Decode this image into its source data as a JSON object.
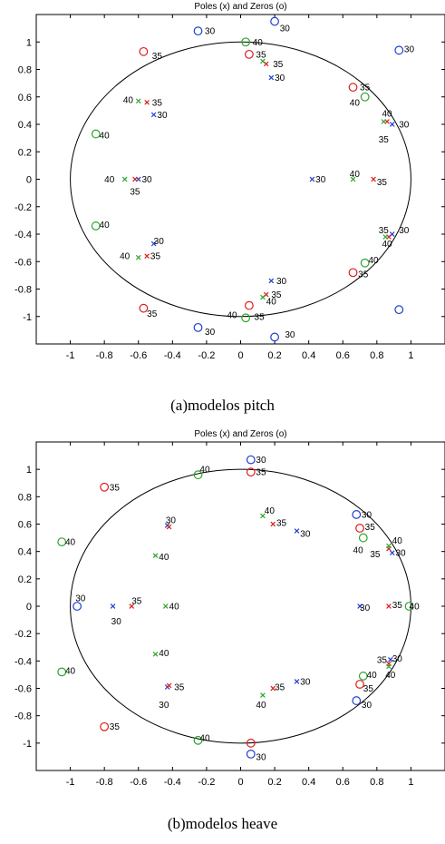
{
  "captions": {
    "pitch": "(a)modelos pitch",
    "heave": "(b)modelos heave"
  },
  "colors": {
    "30": "#1f3fd1",
    "35": "#e01b1b",
    "40": "#2aa52a",
    "axes": "#000000"
  },
  "chart_data": [
    {
      "type": "scatter",
      "title": "Poles (x) and Zeros (o)",
      "xlabel": "",
      "ylabel": "",
      "xlim": [
        -1.2,
        1.2
      ],
      "ylim": [
        -1.2,
        1.2
      ],
      "xticks": [
        -1,
        -0.8,
        -0.6,
        -0.4,
        -0.2,
        0,
        0.2,
        0.4,
        0.6,
        0.8,
        1
      ],
      "xtick_labels": [
        "-1",
        "-0.8",
        "-0.6",
        "-0.4",
        "-0.2",
        "0",
        "0.2",
        "0.4",
        "0.6",
        "0.8",
        "1"
      ],
      "yticks": [
        -1,
        -0.8,
        -0.6,
        -0.4,
        -0.2,
        0,
        0.2,
        0.4,
        0.6,
        0.8,
        1
      ],
      "ytick_labels": [
        "-1",
        "-0.8",
        "-0.6",
        "-0.4",
        "-0.2",
        "0",
        "0.2",
        "0.4",
        "0.6",
        "0.8",
        "1"
      ],
      "unit_circle": true,
      "grid": false,
      "legend": "none",
      "series": [
        {
          "name": "30",
          "color": "#1f3fd1",
          "zeros": [
            [
              -0.25,
              1.08
            ],
            [
              0.2,
              1.15
            ],
            [
              0.93,
              0.94
            ],
            [
              -0.25,
              -1.08
            ],
            [
              0.2,
              -1.15
            ],
            [
              0.93,
              -0.95
            ]
          ],
          "poles": [
            [
              0.18,
              0.74
            ],
            [
              -0.51,
              0.47
            ],
            [
              0.89,
              0.4
            ],
            [
              -0.6,
              0.0
            ],
            [
              0.42,
              0.0
            ],
            [
              0.89,
              -0.4
            ],
            [
              -0.51,
              -0.47
            ],
            [
              0.18,
              -0.74
            ]
          ]
        },
        {
          "name": "35",
          "color": "#e01b1b",
          "zeros": [
            [
              -0.57,
              0.93
            ],
            [
              0.05,
              0.91
            ],
            [
              0.66,
              0.67
            ],
            [
              0.66,
              -0.68
            ],
            [
              0.05,
              -0.92
            ],
            [
              -0.57,
              -0.94
            ]
          ],
          "poles": [
            [
              0.15,
              0.84
            ],
            [
              -0.55,
              0.56
            ],
            [
              0.86,
              0.42
            ],
            [
              -0.62,
              0.0
            ],
            [
              0.78,
              0.0
            ],
            [
              0.87,
              -0.42
            ],
            [
              -0.55,
              -0.56
            ],
            [
              0.15,
              -0.84
            ]
          ]
        },
        {
          "name": "40",
          "color": "#2aa52a",
          "zeros": [
            [
              0.03,
              1.0
            ],
            [
              0.73,
              0.6
            ],
            [
              -0.85,
              0.33
            ],
            [
              -0.85,
              -0.34
            ],
            [
              0.73,
              -0.61
            ],
            [
              0.03,
              -1.01
            ]
          ],
          "poles": [
            [
              0.13,
              0.86
            ],
            [
              -0.6,
              0.57
            ],
            [
              0.84,
              0.42
            ],
            [
              -0.68,
              0.0
            ],
            [
              0.66,
              0.0
            ],
            [
              0.85,
              -0.42
            ],
            [
              -0.6,
              -0.57
            ],
            [
              0.13,
              -0.86
            ]
          ]
        }
      ],
      "annotations": [
        {
          "text": "30",
          "x": -0.21,
          "y": 1.08
        },
        {
          "text": "30",
          "x": 0.23,
          "y": 1.1
        },
        {
          "text": "30",
          "x": 0.96,
          "y": 0.95
        },
        {
          "text": "40",
          "x": 0.07,
          "y": 1.0
        },
        {
          "text": "35",
          "x": -0.52,
          "y": 0.9
        },
        {
          "text": "35",
          "x": 0.09,
          "y": 0.91
        },
        {
          "text": "35",
          "x": 0.19,
          "y": 0.84
        },
        {
          "text": "30",
          "x": 0.2,
          "y": 0.74
        },
        {
          "text": "35",
          "x": 0.7,
          "y": 0.67
        },
        {
          "text": "40",
          "x": 0.64,
          "y": 0.56
        },
        {
          "text": "40",
          "x": -0.69,
          "y": 0.58
        },
        {
          "text": "35",
          "x": -0.52,
          "y": 0.56
        },
        {
          "text": "30",
          "x": -0.49,
          "y": 0.47
        },
        {
          "text": "40",
          "x": 0.83,
          "y": 0.48
        },
        {
          "text": "30",
          "x": 0.93,
          "y": 0.4
        },
        {
          "text": "35",
          "x": 0.81,
          "y": 0.29
        },
        {
          "text": "40",
          "x": -0.83,
          "y": 0.32
        },
        {
          "text": "40",
          "x": -0.8,
          "y": 0.0
        },
        {
          "text": "30",
          "x": -0.58,
          "y": 0.0
        },
        {
          "text": "35",
          "x": -0.65,
          "y": -0.09
        },
        {
          "text": "30",
          "x": 0.44,
          "y": 0.0
        },
        {
          "text": "40",
          "x": 0.64,
          "y": 0.04
        },
        {
          "text": "35",
          "x": 0.8,
          "y": -0.02
        },
        {
          "text": "40",
          "x": -0.83,
          "y": -0.33
        },
        {
          "text": "30",
          "x": -0.51,
          "y": -0.45
        },
        {
          "text": "40",
          "x": -0.71,
          "y": -0.56
        },
        {
          "text": "35",
          "x": -0.53,
          "y": -0.56
        },
        {
          "text": "35",
          "x": 0.81,
          "y": -0.37
        },
        {
          "text": "30",
          "x": 0.93,
          "y": -0.37
        },
        {
          "text": "40",
          "x": 0.83,
          "y": -0.47
        },
        {
          "text": "40",
          "x": 0.75,
          "y": -0.59
        },
        {
          "text": "35",
          "x": 0.69,
          "y": -0.69
        },
        {
          "text": "30",
          "x": 0.21,
          "y": -0.74
        },
        {
          "text": "35",
          "x": 0.18,
          "y": -0.84
        },
        {
          "text": "40",
          "x": 0.15,
          "y": -0.89
        },
        {
          "text": "35",
          "x": -0.55,
          "y": -0.98
        },
        {
          "text": "40",
          "x": -0.08,
          "y": -0.99
        },
        {
          "text": "35",
          "x": 0.08,
          "y": -1.0
        },
        {
          "text": "30",
          "x": -0.21,
          "y": -1.11
        },
        {
          "text": "30",
          "x": 0.26,
          "y": -1.13
        }
      ]
    },
    {
      "type": "scatter",
      "title": "Poles (x) and Zeros (o)",
      "xlabel": "",
      "ylabel": "",
      "xlim": [
        -1.2,
        1.2
      ],
      "ylim": [
        -1.2,
        1.2
      ],
      "xticks": [
        -1,
        -0.8,
        -0.6,
        -0.4,
        -0.2,
        0,
        0.2,
        0.4,
        0.6,
        0.8,
        1
      ],
      "xtick_labels": [
        "-1",
        "-0.8",
        "-0.6",
        "-0.4",
        "-0.2",
        "0",
        "0.2",
        "0.4",
        "0.6",
        "0.8",
        "1"
      ],
      "yticks": [
        -1,
        -0.8,
        -0.6,
        -0.4,
        -0.2,
        0,
        0.2,
        0.4,
        0.6,
        0.8,
        1
      ],
      "ytick_labels": [
        "-1",
        "-0.8",
        "-0.6",
        "-0.4",
        "-0.2",
        "0",
        "0.2",
        "0.4",
        "0.6",
        "0.8",
        "1"
      ],
      "unit_circle": true,
      "grid": false,
      "legend": "none",
      "series": [
        {
          "name": "30",
          "color": "#1f3fd1",
          "zeros": [
            [
              0.06,
              1.07
            ],
            [
              0.68,
              0.67
            ],
            [
              -0.96,
              0.0
            ],
            [
              0.68,
              -0.69
            ],
            [
              0.06,
              -1.08
            ]
          ],
          "poles": [
            [
              0.33,
              0.55
            ],
            [
              -0.43,
              0.59
            ],
            [
              0.89,
              0.39
            ],
            [
              -0.75,
              0.0
            ],
            [
              0.7,
              0.0
            ],
            [
              0.88,
              -0.39
            ],
            [
              -0.43,
              -0.59
            ],
            [
              0.33,
              -0.55
            ]
          ]
        },
        {
          "name": "35",
          "color": "#e01b1b",
          "zeros": [
            [
              -0.8,
              0.87
            ],
            [
              0.06,
              0.98
            ],
            [
              0.7,
              0.57
            ],
            [
              0.7,
              -0.57
            ],
            [
              -0.8,
              -0.88
            ],
            [
              0.06,
              -1.0
            ]
          ],
          "poles": [
            [
              0.19,
              0.6
            ],
            [
              -0.42,
              0.58
            ],
            [
              0.87,
              0.42
            ],
            [
              -0.64,
              0.0
            ],
            [
              0.87,
              0.0
            ],
            [
              0.87,
              -0.42
            ],
            [
              -0.42,
              -0.58
            ],
            [
              0.19,
              -0.6
            ]
          ]
        },
        {
          "name": "40",
          "color": "#2aa52a",
          "zeros": [
            [
              -0.25,
              0.96
            ],
            [
              0.72,
              0.5
            ],
            [
              -1.05,
              0.47
            ],
            [
              0.99,
              0.0
            ],
            [
              -1.05,
              -0.48
            ],
            [
              0.72,
              -0.51
            ],
            [
              -0.25,
              -0.98
            ]
          ],
          "poles": [
            [
              0.13,
              0.66
            ],
            [
              -0.5,
              0.37
            ],
            [
              0.87,
              0.44
            ],
            [
              -0.44,
              0.0
            ],
            [
              0.87,
              -0.44
            ],
            [
              -0.5,
              -0.35
            ],
            [
              0.13,
              -0.65
            ]
          ]
        }
      ],
      "annotations": [
        {
          "text": "30",
          "x": 0.09,
          "y": 1.07
        },
        {
          "text": "35",
          "x": 0.09,
          "y": 0.98
        },
        {
          "text": "35",
          "x": -0.77,
          "y": 0.87
        },
        {
          "text": "40",
          "x": -0.24,
          "y": 1.0
        },
        {
          "text": "40",
          "x": 0.14,
          "y": 0.7
        },
        {
          "text": "35",
          "x": 0.21,
          "y": 0.61
        },
        {
          "text": "30",
          "x": 0.35,
          "y": 0.53
        },
        {
          "text": "30",
          "x": -0.44,
          "y": 0.63
        },
        {
          "text": "30",
          "x": 0.71,
          "y": 0.67
        },
        {
          "text": "35",
          "x": 0.73,
          "y": 0.58
        },
        {
          "text": "40",
          "x": 0.66,
          "y": 0.41
        },
        {
          "text": "40",
          "x": -1.03,
          "y": 0.47
        },
        {
          "text": "40",
          "x": -0.48,
          "y": 0.36
        },
        {
          "text": "40",
          "x": 0.89,
          "y": 0.48
        },
        {
          "text": "30",
          "x": 0.91,
          "y": 0.39
        },
        {
          "text": "35",
          "x": 0.76,
          "y": 0.38
        },
        {
          "text": "30",
          "x": -0.97,
          "y": 0.06
        },
        {
          "text": "35",
          "x": -0.64,
          "y": 0.04
        },
        {
          "text": "40",
          "x": -0.42,
          "y": 0.0
        },
        {
          "text": "30",
          "x": -0.76,
          "y": -0.11
        },
        {
          "text": "30",
          "x": 0.7,
          "y": -0.01
        },
        {
          "text": "35",
          "x": 0.89,
          "y": 0.01
        },
        {
          "text": "40",
          "x": 0.99,
          "y": 0.0
        },
        {
          "text": "40",
          "x": -1.03,
          "y": -0.47
        },
        {
          "text": "40",
          "x": -0.48,
          "y": -0.34
        },
        {
          "text": "35",
          "x": -0.39,
          "y": -0.59
        },
        {
          "text": "30",
          "x": -0.48,
          "y": -0.72
        },
        {
          "text": "35",
          "x": 0.2,
          "y": -0.59
        },
        {
          "text": "30",
          "x": 0.35,
          "y": -0.55
        },
        {
          "text": "40",
          "x": 0.09,
          "y": -0.72
        },
        {
          "text": "35",
          "x": 0.8,
          "y": -0.39
        },
        {
          "text": "30",
          "x": 0.89,
          "y": -0.38
        },
        {
          "text": "40",
          "x": 0.74,
          "y": -0.5
        },
        {
          "text": "40",
          "x": 0.85,
          "y": -0.5
        },
        {
          "text": "35",
          "x": 0.72,
          "y": -0.6
        },
        {
          "text": "30",
          "x": 0.71,
          "y": -0.72
        },
        {
          "text": "35",
          "x": -0.77,
          "y": -0.88
        },
        {
          "text": "40",
          "x": -0.24,
          "y": -0.96
        },
        {
          "text": "30",
          "x": 0.09,
          "y": -1.1
        }
      ]
    }
  ]
}
